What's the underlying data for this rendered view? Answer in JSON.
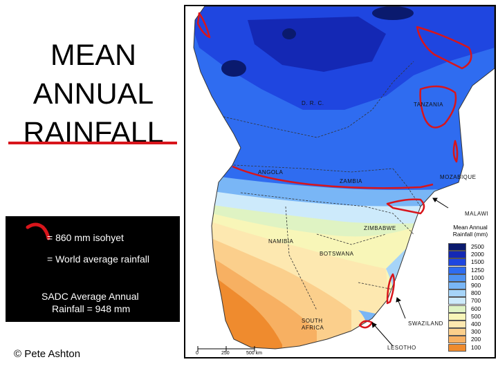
{
  "title": {
    "lines": [
      "MEAN",
      "ANNUAL",
      "RAINFALL"
    ]
  },
  "legend": {
    "isohyet_label": "= 860 mm isohyet",
    "world_label": "= World average rainfall",
    "sadc_line1": "SADC  Average  Annual",
    "sadc_line2": "Rainfall  =  948 mm"
  },
  "credit": "© Pete Ashton",
  "map": {
    "countries": {
      "drc": "D. R. C.",
      "tanzania": "TANZANIA",
      "angola": "ANGOLA",
      "zambia": "ZAMBIA",
      "mozambique": "MOZABIQUE",
      "malawi": "MALAWI",
      "zimbabwe": "ZIMBABWE",
      "namibia": "NAMIBIA",
      "botswana": "BOTSWANA",
      "swaziland": "SWAZILAND",
      "south_africa_1": "SOUTH",
      "south_africa_2": "AFRICA",
      "lesotho": "LESOTHO"
    },
    "scale": {
      "zero": "0",
      "mid": "250",
      "end": "500 km"
    },
    "key": {
      "title_1": "Mean Annual",
      "title_2": "Rainfall (mm)",
      "classes": [
        {
          "label": "2500",
          "color": "#0a1a6e"
        },
        {
          "label": "2000",
          "color": "#1428b4"
        },
        {
          "label": "1500",
          "color": "#1f46e0"
        },
        {
          "label": "1250",
          "color": "#2f6cf0"
        },
        {
          "label": "1000",
          "color": "#4f93f2"
        },
        {
          "label": "900",
          "color": "#79b6f6"
        },
        {
          "label": "800",
          "color": "#a6d4f8"
        },
        {
          "label": "700",
          "color": "#cdeafb"
        },
        {
          "label": "600",
          "color": "#dff3c3"
        },
        {
          "label": "500",
          "color": "#f8f6b8"
        },
        {
          "label": "400",
          "color": "#fde8b0"
        },
        {
          "label": "300",
          "color": "#fbcf8c"
        },
        {
          "label": "200",
          "color": "#f7b062"
        },
        {
          "label": "100",
          "color": "#ef8b2e"
        }
      ]
    },
    "colors": {
      "isohyet": "#d8151b",
      "ocean": "#ffffff",
      "borders": "#333333"
    }
  }
}
